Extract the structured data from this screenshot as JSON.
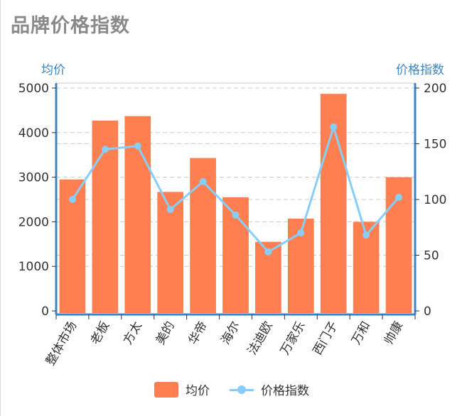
{
  "title": "品牌价格指数",
  "legend": {
    "bar_label": "均价",
    "line_label": "价格指数"
  },
  "colors": {
    "bar": "#ff7f50",
    "line": "#87cefa",
    "axis": "#3d86c6",
    "grid": "#cccccc",
    "title": "#8a8a8a"
  },
  "chart_data": {
    "type": "bar",
    "categories": [
      "整体市场",
      "老板",
      "方太",
      "美的",
      "华帝",
      "海尔",
      "法迪欧",
      "万家乐",
      "西门子",
      "万和",
      "帅康"
    ],
    "series": [
      {
        "name": "均价",
        "type": "bar",
        "axis": "left",
        "values": [
          2950,
          4270,
          4370,
          2670,
          3430,
          2550,
          1550,
          2070,
          4870,
          2000,
          3000
        ]
      },
      {
        "name": "价格指数",
        "type": "line",
        "axis": "right",
        "values": [
          100,
          145,
          148,
          91,
          116,
          86,
          53,
          70,
          165,
          68,
          102
        ]
      }
    ],
    "yaxis_left": {
      "label": "均价",
      "ylim": [
        0,
        5000
      ],
      "ticks": [
        "0",
        "1000",
        "2000",
        "3000",
        "4000",
        "5000"
      ]
    },
    "yaxis_right": {
      "label": "价格指数",
      "ylim": [
        0,
        200
      ],
      "ticks": [
        "0",
        "50",
        "100",
        "150",
        "200"
      ]
    },
    "grid": true,
    "legend_position": "bottom"
  }
}
